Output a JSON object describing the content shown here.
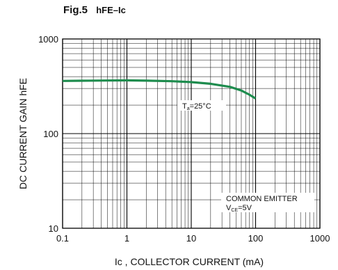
{
  "title": {
    "fig": "Fig.5",
    "symbol": "hFE–Ic"
  },
  "chart_data": {
    "type": "line",
    "title": "Fig.5 hFE–Ic",
    "xlabel": "Ic , COLLECTOR CURRENT (mA)",
    "ylabel": "DC CURRENT GAIN hFE",
    "xscale": "log",
    "yscale": "log",
    "xlim": [
      0.1,
      1000
    ],
    "ylim": [
      10,
      1000
    ],
    "x_ticks": [
      "0.1",
      "1",
      "10",
      "100",
      "1000"
    ],
    "y_ticks": [
      "10",
      "100",
      "1000"
    ],
    "grid": true,
    "series": [
      {
        "color": "#1e8c4e",
        "x": [
          0.1,
          0.2,
          0.5,
          1,
          2,
          5,
          10,
          20,
          40,
          60,
          80,
          100
        ],
        "y": [
          360,
          362,
          364,
          365,
          363,
          358,
          350,
          336,
          312,
          285,
          258,
          235
        ]
      }
    ],
    "annotations": {
      "temp": {
        "pre": "T",
        "sub": "a",
        "post": "=25°C"
      },
      "mode": "COMMON EMITTER",
      "vce": {
        "pre": "V",
        "sub": "CE",
        "post": "=5V"
      }
    }
  }
}
